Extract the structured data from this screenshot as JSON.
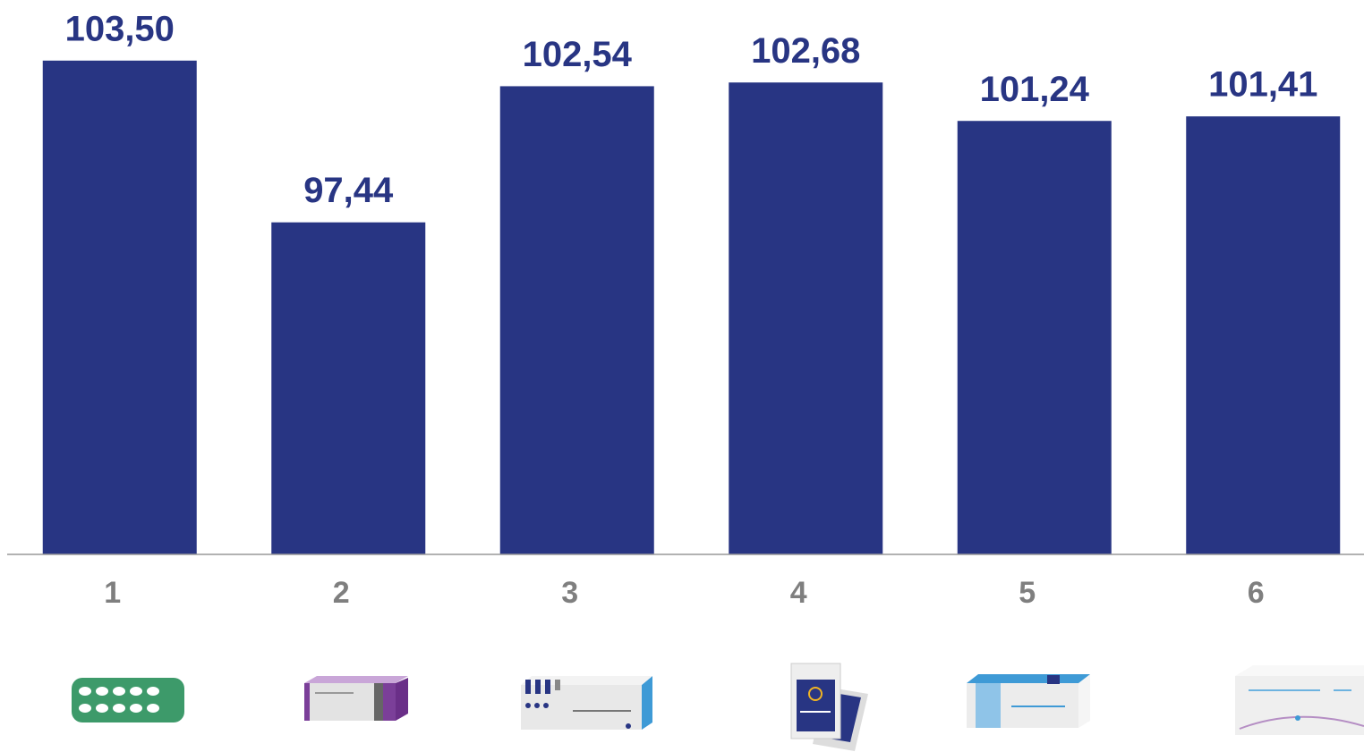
{
  "chart_data": {
    "type": "bar",
    "categories": [
      "1",
      "2",
      "3",
      "4",
      "5",
      "6"
    ],
    "values": [
      103.5,
      97.44,
      102.54,
      102.68,
      101.24,
      101.41
    ],
    "value_labels": [
      "103,50",
      "97,44",
      "102,54",
      "102,68",
      "101,24",
      "101,41"
    ],
    "color": "#283583",
    "ylim": [
      85,
      105
    ]
  }
}
